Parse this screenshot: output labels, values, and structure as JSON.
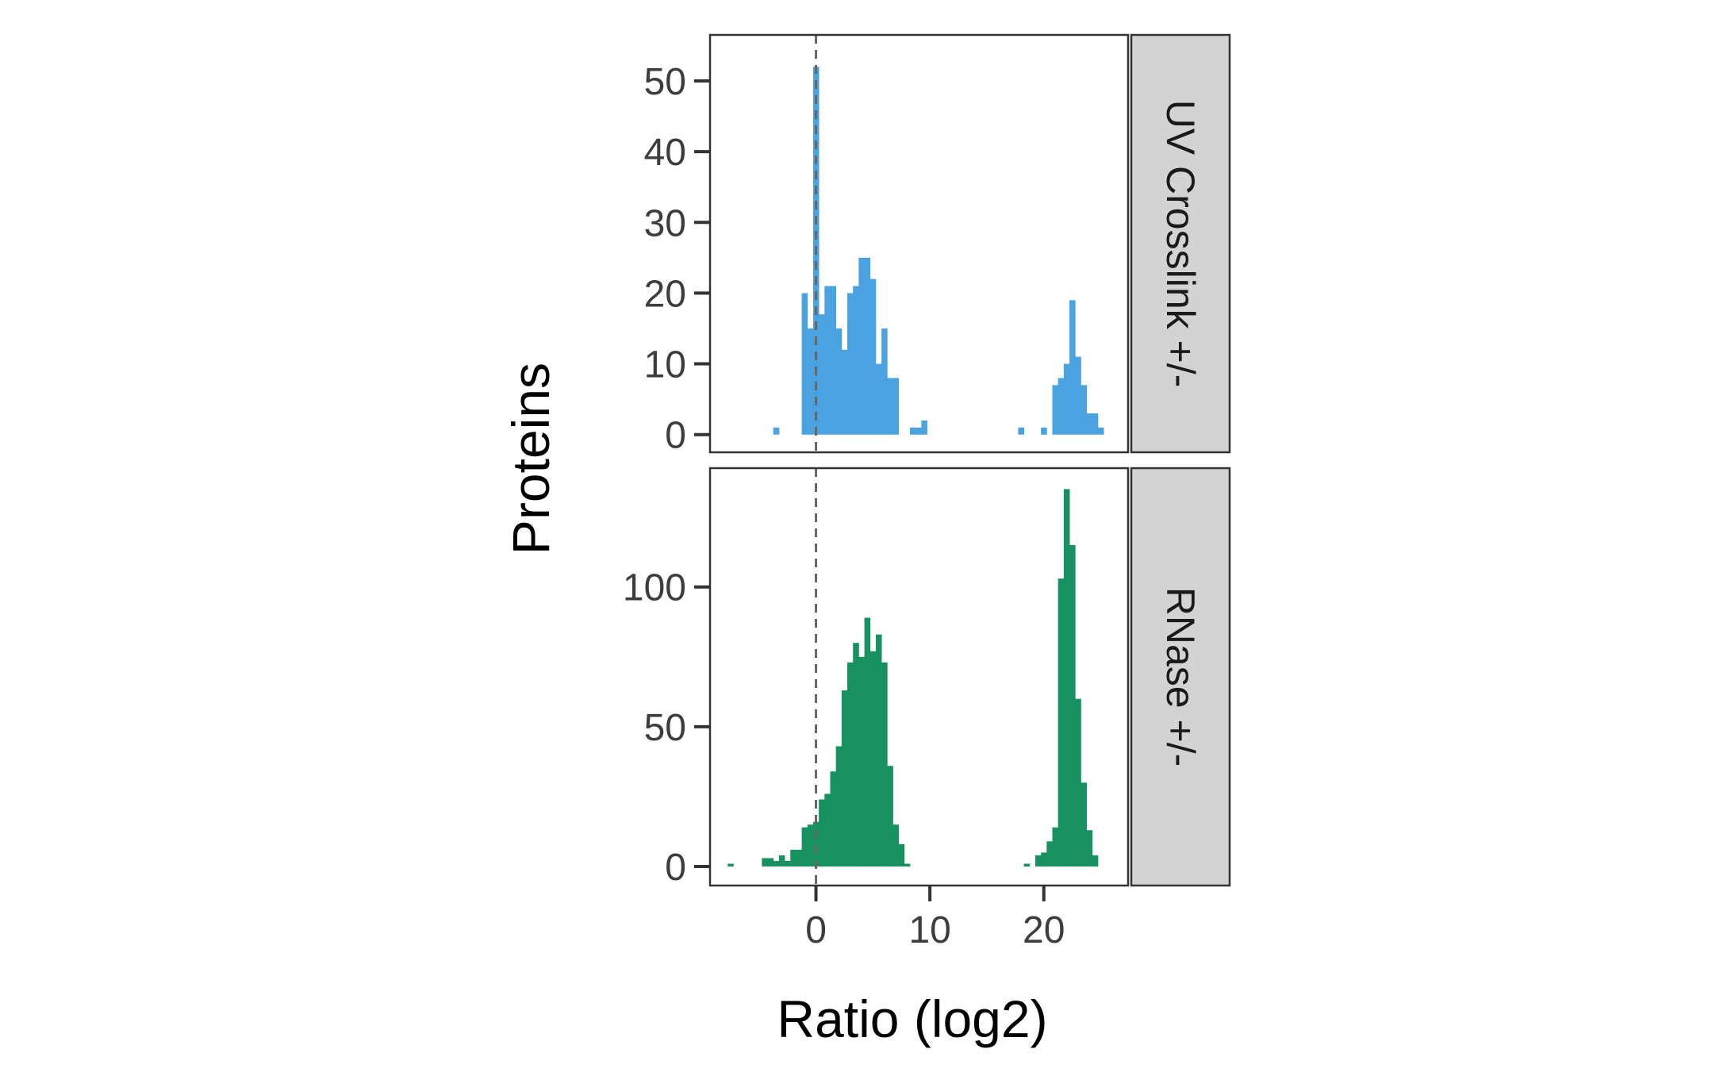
{
  "chart_data": {
    "type": "bar",
    "layout": "faceted histogram, two panels stacked vertically, shared x axis",
    "xlabel": "Ratio (log2)",
    "ylabel": "Proteins",
    "x_ticks": [
      "0",
      "10",
      "20"
    ],
    "x_tick_values": [
      0,
      10,
      20
    ],
    "xlim": [
      -9.3,
      27.4
    ],
    "bin_width": 0.5,
    "reference_line": {
      "x": 0,
      "style": "dashed",
      "color": "#666666"
    },
    "grid": false,
    "legend": "none",
    "panels": [
      {
        "strip_label": "UV Crosslink +/-",
        "fill": "#4aa3e0",
        "ylim": [
          -2.5,
          56.5
        ],
        "y_ticks": [
          "0",
          "10",
          "20",
          "30",
          "40",
          "50"
        ],
        "y_tick_values": [
          0,
          10,
          20,
          30,
          40,
          50
        ],
        "bins": [
          {
            "x": -3.5,
            "count": 1
          },
          {
            "x": -1,
            "count": 20
          },
          {
            "x": -0.5,
            "count": 15
          },
          {
            "x": 0,
            "count": 52
          },
          {
            "x": 0.5,
            "count": 17
          },
          {
            "x": 1,
            "count": 21
          },
          {
            "x": 1.5,
            "count": 21
          },
          {
            "x": 2,
            "count": 15
          },
          {
            "x": 2.5,
            "count": 12
          },
          {
            "x": 3,
            "count": 20
          },
          {
            "x": 3.5,
            "count": 21
          },
          {
            "x": 4,
            "count": 25
          },
          {
            "x": 4.5,
            "count": 25
          },
          {
            "x": 5,
            "count": 22
          },
          {
            "x": 5.5,
            "count": 10
          },
          {
            "x": 6,
            "count": 15
          },
          {
            "x": 6.5,
            "count": 8
          },
          {
            "x": 7,
            "count": 8
          },
          {
            "x": 8.5,
            "count": 1
          },
          {
            "x": 9,
            "count": 1
          },
          {
            "x": 9.5,
            "count": 2
          },
          {
            "x": 18,
            "count": 1
          },
          {
            "x": 20,
            "count": 1
          },
          {
            "x": 21,
            "count": 7
          },
          {
            "x": 21.5,
            "count": 8
          },
          {
            "x": 22,
            "count": 10
          },
          {
            "x": 22.5,
            "count": 19
          },
          {
            "x": 23,
            "count": 11
          },
          {
            "x": 23.5,
            "count": 7
          },
          {
            "x": 24,
            "count": 3
          },
          {
            "x": 24.5,
            "count": 3
          },
          {
            "x": 25,
            "count": 1
          }
        ]
      },
      {
        "strip_label": "RNase +/-",
        "fill": "#189160",
        "ylim": [
          -6.8,
          142.5
        ],
        "y_ticks": [
          "0",
          "50",
          "100"
        ],
        "y_tick_values": [
          0,
          50,
          100
        ],
        "bins": [
          {
            "x": -7.5,
            "count": 1
          },
          {
            "x": -4.5,
            "count": 3
          },
          {
            "x": -4,
            "count": 3
          },
          {
            "x": -3.5,
            "count": 2
          },
          {
            "x": -3,
            "count": 4
          },
          {
            "x": -2.5,
            "count": 2
          },
          {
            "x": -2,
            "count": 6
          },
          {
            "x": -1.5,
            "count": 6
          },
          {
            "x": -1,
            "count": 14
          },
          {
            "x": -0.5,
            "count": 15
          },
          {
            "x": 0,
            "count": 16
          },
          {
            "x": 0.5,
            "count": 24
          },
          {
            "x": 1,
            "count": 26
          },
          {
            "x": 1.5,
            "count": 34
          },
          {
            "x": 2,
            "count": 43
          },
          {
            "x": 2.5,
            "count": 63
          },
          {
            "x": 3,
            "count": 73
          },
          {
            "x": 3.5,
            "count": 80
          },
          {
            "x": 4,
            "count": 75
          },
          {
            "x": 4.5,
            "count": 89
          },
          {
            "x": 5,
            "count": 77
          },
          {
            "x": 5.5,
            "count": 83
          },
          {
            "x": 6,
            "count": 73
          },
          {
            "x": 6.5,
            "count": 36
          },
          {
            "x": 7,
            "count": 15
          },
          {
            "x": 7.5,
            "count": 8
          },
          {
            "x": 8,
            "count": 1
          },
          {
            "x": 18.5,
            "count": 1
          },
          {
            "x": 19.5,
            "count": 4
          },
          {
            "x": 20,
            "count": 5
          },
          {
            "x": 20.5,
            "count": 9
          },
          {
            "x": 21,
            "count": 14
          },
          {
            "x": 21.5,
            "count": 103
          },
          {
            "x": 22,
            "count": 135
          },
          {
            "x": 22.5,
            "count": 115
          },
          {
            "x": 23,
            "count": 60
          },
          {
            "x": 23.5,
            "count": 30
          },
          {
            "x": 24,
            "count": 13
          },
          {
            "x": 24.5,
            "count": 4
          }
        ]
      }
    ]
  }
}
